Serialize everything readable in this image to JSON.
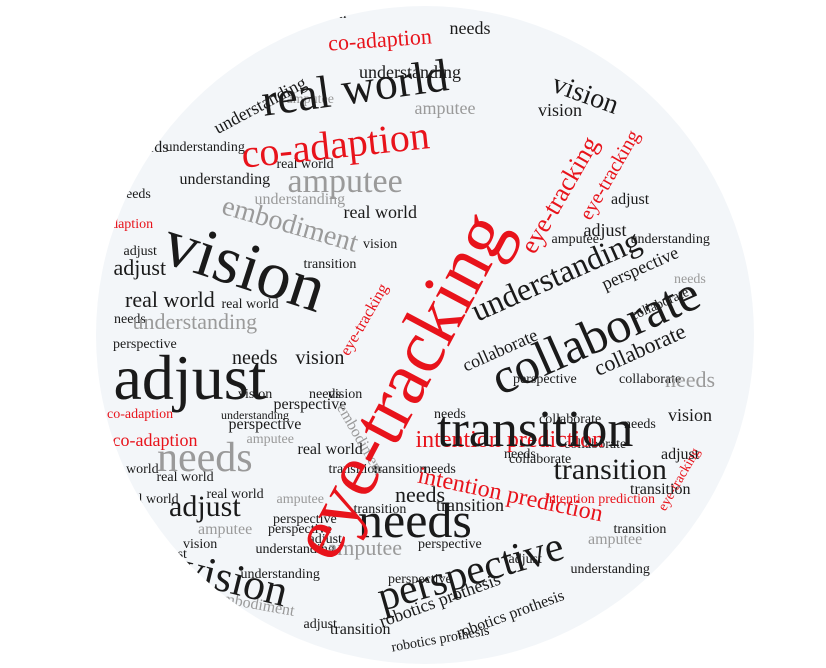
{
  "colors": {
    "black": "#1a1a1a",
    "red": "#e8131b",
    "gray": "#9a9a9a",
    "background": "#f3f6f9"
  },
  "words": [
    {
      "text": "eye-tracking",
      "color": "red"
    },
    {
      "text": "vision",
      "color": "black"
    },
    {
      "text": "adjust",
      "color": "black"
    },
    {
      "text": "collaborate",
      "color": "black"
    },
    {
      "text": "transition",
      "color": "black"
    },
    {
      "text": "needs",
      "color": "black"
    },
    {
      "text": "real world",
      "color": "black"
    },
    {
      "text": "co-adaption",
      "color": "red"
    },
    {
      "text": "perspective",
      "color": "black"
    },
    {
      "text": "vision",
      "color": "black"
    },
    {
      "text": "needs",
      "color": "gray"
    },
    {
      "text": "amputee",
      "color": "gray"
    },
    {
      "text": "embodiment",
      "color": "gray"
    },
    {
      "text": "understanding",
      "color": "black"
    },
    {
      "text": "intention prediction",
      "color": "red"
    },
    {
      "text": "intention prediction",
      "color": "red"
    },
    {
      "text": "eye-tracking",
      "color": "red"
    },
    {
      "text": "eye-tracking",
      "color": "red"
    },
    {
      "text": "understanding",
      "color": "gray"
    },
    {
      "text": "adjust",
      "color": "black"
    },
    {
      "text": "real world",
      "color": "black"
    },
    {
      "text": "vision",
      "color": "black"
    },
    {
      "text": "transition",
      "color": "black"
    },
    {
      "text": "collaborate",
      "color": "black"
    },
    {
      "text": "perspective",
      "color": "black"
    },
    {
      "text": "robotics prothesis",
      "color": "black"
    },
    {
      "text": "robotics prothesis",
      "color": "black"
    },
    {
      "text": "amputee",
      "color": "gray"
    },
    {
      "text": "co-adaption",
      "color": "red"
    },
    {
      "text": "co-adaption",
      "color": "red"
    },
    {
      "text": "needs",
      "color": "black"
    },
    {
      "text": "needs",
      "color": "gray"
    },
    {
      "text": "adjust",
      "color": "black"
    },
    {
      "text": "understanding",
      "color": "black"
    },
    {
      "text": "understanding",
      "color": "black"
    },
    {
      "text": "amputee",
      "color": "gray"
    },
    {
      "text": "real world",
      "color": "black"
    },
    {
      "text": "embodiment",
      "color": "gray"
    },
    {
      "text": "amputee",
      "color": "gray"
    },
    {
      "text": "perspective",
      "color": "black"
    },
    {
      "text": "needs",
      "color": "black"
    },
    {
      "text": "adjust",
      "color": "black"
    },
    {
      "text": "vision",
      "color": "black"
    },
    {
      "text": "needs",
      "color": "black"
    },
    {
      "text": "real world",
      "color": "black"
    },
    {
      "text": "understanding",
      "color": "gray"
    },
    {
      "text": "collaborate",
      "color": "black"
    },
    {
      "text": "collaborate",
      "color": "black"
    },
    {
      "text": "transition",
      "color": "black"
    },
    {
      "text": "transition",
      "color": "black"
    },
    {
      "text": "needs",
      "color": "black"
    },
    {
      "text": "needs",
      "color": "black"
    },
    {
      "text": "perspective",
      "color": "black"
    },
    {
      "text": "understanding",
      "color": "black"
    },
    {
      "text": "adjust",
      "color": "black"
    },
    {
      "text": "vision",
      "color": "black"
    },
    {
      "text": "real world",
      "color": "black"
    },
    {
      "text": "eye-tracking",
      "color": "red"
    },
    {
      "text": "eye-tracking",
      "color": "red"
    },
    {
      "text": "co-adaption",
      "color": "red"
    },
    {
      "text": "intention prediction",
      "color": "red"
    },
    {
      "text": "amputee",
      "color": "gray"
    },
    {
      "text": "embodiment",
      "color": "gray"
    },
    {
      "text": "perspective",
      "color": "black"
    },
    {
      "text": "robotics prothesis",
      "color": "black"
    },
    {
      "text": "transition",
      "color": "black"
    },
    {
      "text": "needs",
      "color": "gray"
    },
    {
      "text": "understanding",
      "color": "black"
    },
    {
      "text": "adjust",
      "color": "black"
    },
    {
      "text": "real world",
      "color": "black"
    },
    {
      "text": "vision",
      "color": "black"
    },
    {
      "text": "collaborate",
      "color": "black"
    },
    {
      "text": "perspective",
      "color": "black"
    },
    {
      "text": "needs",
      "color": "black"
    },
    {
      "text": "transition",
      "color": "black"
    },
    {
      "text": "amputee",
      "color": "gray"
    },
    {
      "text": "understanding",
      "color": "black"
    },
    {
      "text": "co-adaption",
      "color": "red"
    },
    {
      "text": "real world",
      "color": "black"
    },
    {
      "text": "embodiment",
      "color": "gray"
    },
    {
      "text": "needs",
      "color": "black"
    },
    {
      "text": "adjust",
      "color": "black"
    },
    {
      "text": "vision",
      "color": "black"
    },
    {
      "text": "needs",
      "color": "black"
    },
    {
      "text": "transition",
      "color": "black"
    },
    {
      "text": "perspective",
      "color": "black"
    },
    {
      "text": "understanding",
      "color": "black"
    },
    {
      "text": "amputee",
      "color": "gray"
    },
    {
      "text": "real world",
      "color": "black"
    },
    {
      "text": "needs",
      "color": "black"
    },
    {
      "text": "collaborate",
      "color": "black"
    },
    {
      "text": "transition",
      "color": "black"
    },
    {
      "text": "adjust",
      "color": "black"
    },
    {
      "text": "vision",
      "color": "black"
    },
    {
      "text": "understanding",
      "color": "black"
    },
    {
      "text": "perspective",
      "color": "black"
    },
    {
      "text": "needs",
      "color": "black"
    },
    {
      "text": "collaborate",
      "color": "black"
    },
    {
      "text": "transition",
      "color": "black"
    },
    {
      "text": "amputee",
      "color": "gray"
    },
    {
      "text": "adjust",
      "color": "black"
    },
    {
      "text": "real world",
      "color": "black"
    },
    {
      "text": "needs",
      "color": "black"
    },
    {
      "text": "vision",
      "color": "black"
    },
    {
      "text": "understanding",
      "color": "black"
    },
    {
      "text": "perspective",
      "color": "black"
    },
    {
      "text": "amputee",
      "color": "black"
    },
    {
      "text": "transition",
      "color": "black"
    },
    {
      "text": "needs",
      "color": "black"
    },
    {
      "text": "adjust",
      "color": "black"
    },
    {
      "text": "collaborate",
      "color": "black"
    },
    {
      "text": "real world",
      "color": "black"
    },
    {
      "text": "needs",
      "color": "black"
    },
    {
      "text": "transition",
      "color": "black"
    },
    {
      "text": "vision",
      "color": "black"
    },
    {
      "text": "adjust",
      "color": "black"
    },
    {
      "text": "perspective",
      "color": "black"
    },
    {
      "text": "understanding",
      "color": "black"
    },
    {
      "text": "needs",
      "color": "black"
    }
  ]
}
